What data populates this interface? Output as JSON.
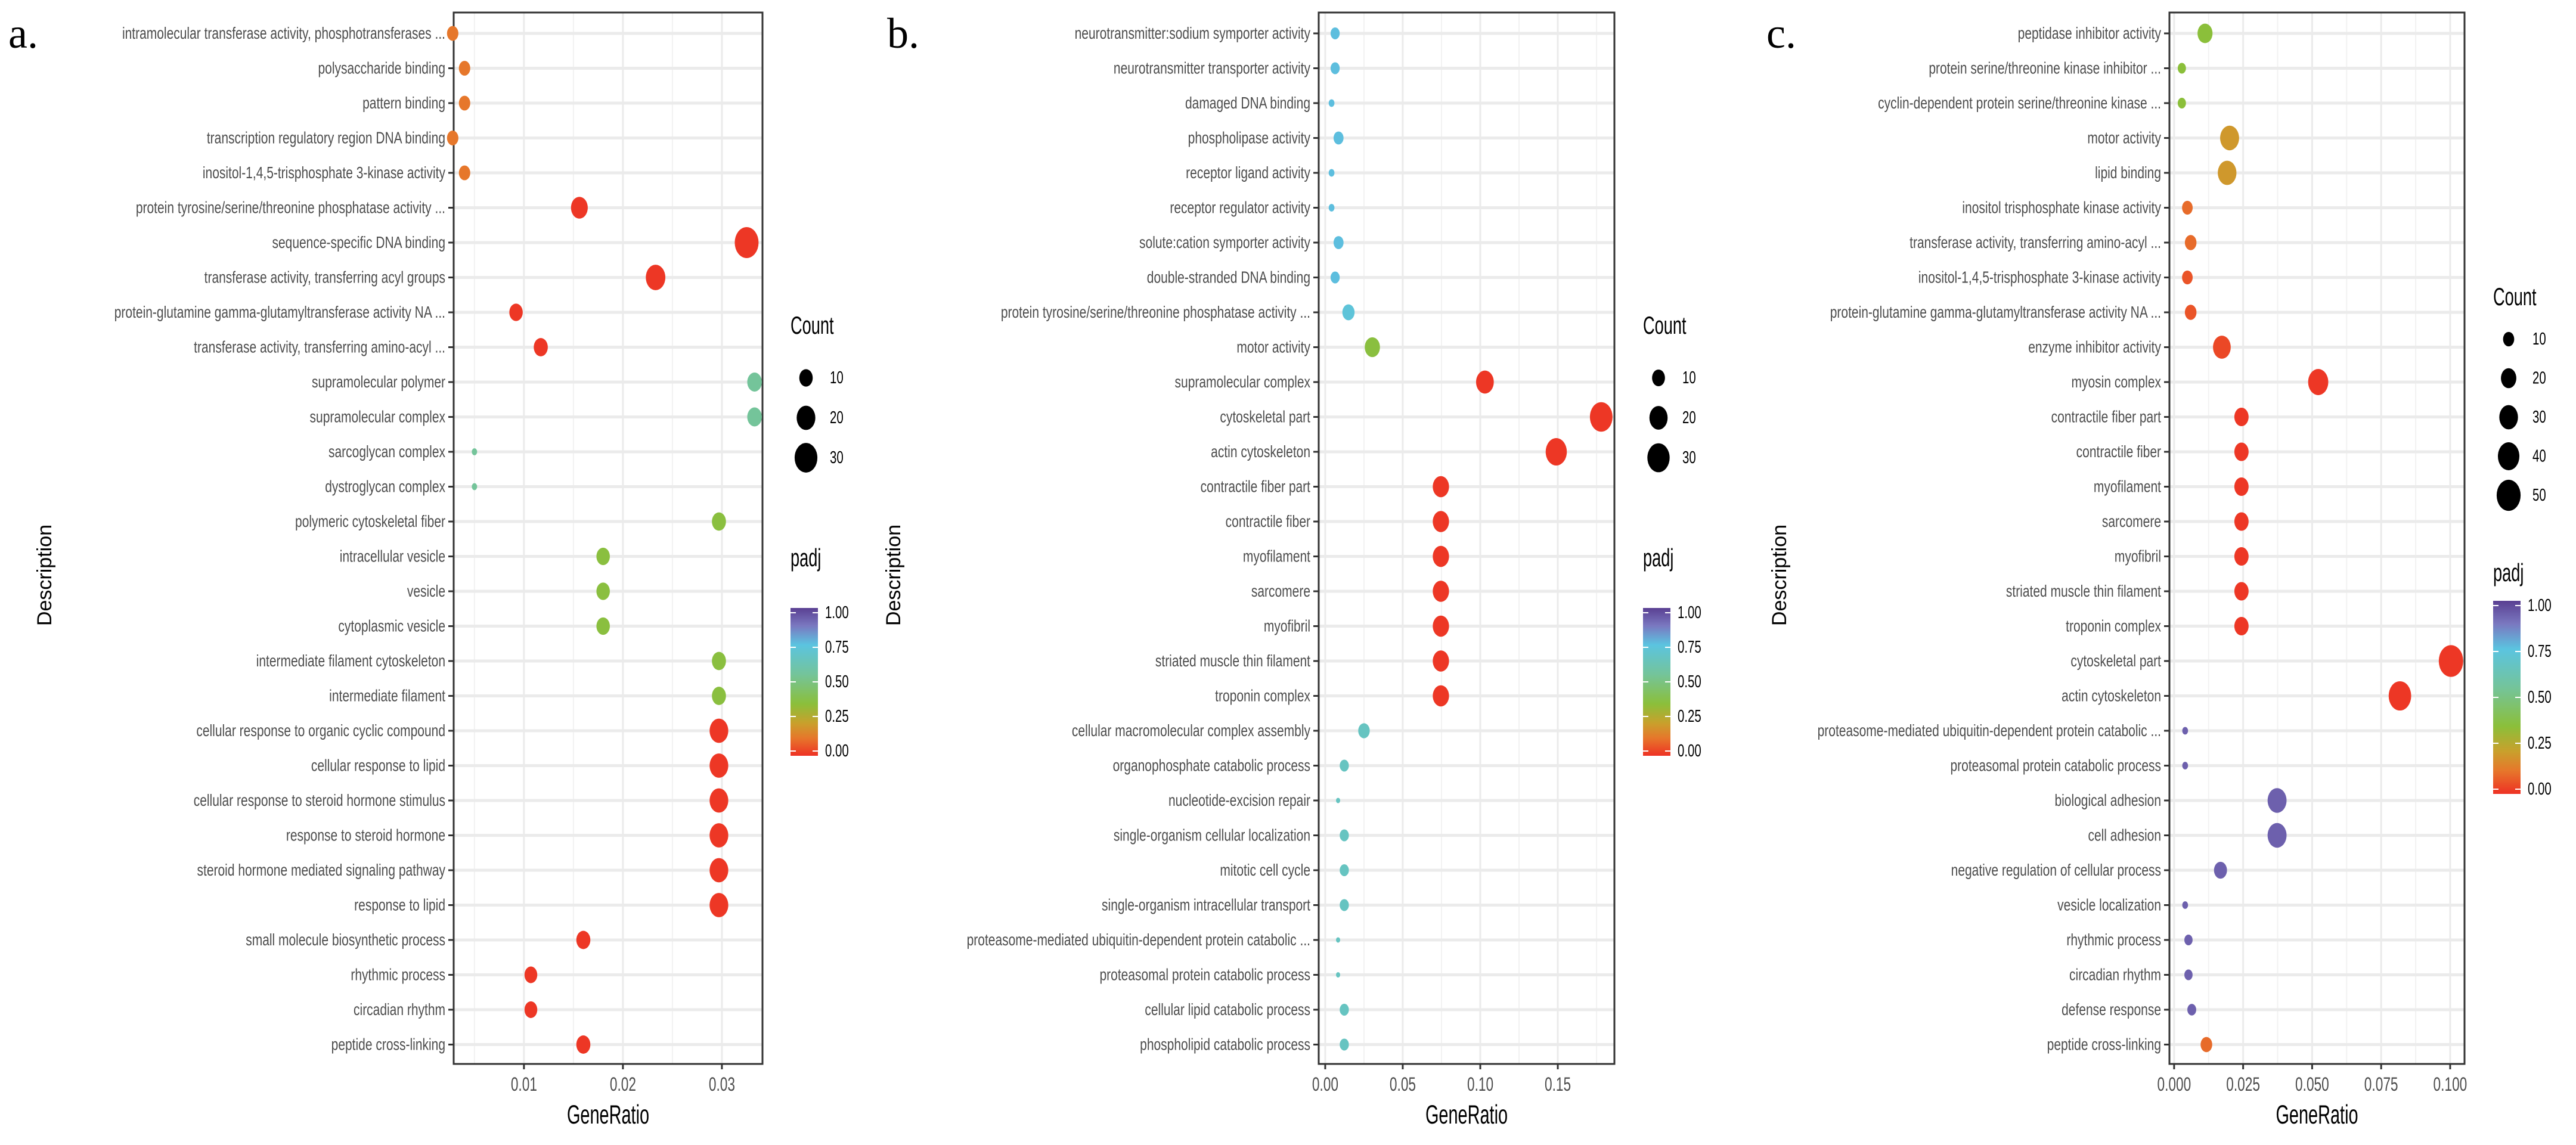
{
  "chart_data": [
    {
      "type": "scatter",
      "panel_letter": "a.",
      "xlabel": "GeneRatio",
      "ylabel": "Description",
      "xlim": [
        0.0029,
        0.0341
      ],
      "major_ticks": [
        0.01,
        0.02,
        0.03
      ],
      "tick_labels": [
        "0.01",
        "0.02",
        "0.03"
      ],
      "minor_ticks": [
        0.005,
        0.015,
        0.025
      ],
      "grid": true,
      "size_legend": {
        "title": "Count",
        "values": [
          10,
          20,
          30
        ],
        "labels": [
          "10",
          "20",
          "30"
        ]
      },
      "color_legend": {
        "title": "padj",
        "labels": [
          "1.00",
          "0.75",
          "0.50",
          "0.25",
          "0.00"
        ],
        "range": [
          0,
          1
        ]
      },
      "legend_position": "right",
      "terms": [
        {
          "label": "intramolecular transferase activity, phosphotransferases ...",
          "gene_ratio": 0.0028,
          "count": 7,
          "padj": 0.12
        },
        {
          "label": "polysaccharide binding",
          "gene_ratio": 0.004,
          "count": 7,
          "padj": 0.12
        },
        {
          "label": "pattern binding",
          "gene_ratio": 0.004,
          "count": 7,
          "padj": 0.12
        },
        {
          "label": "transcription regulatory region DNA binding",
          "gene_ratio": 0.0028,
          "count": 7,
          "padj": 0.12
        },
        {
          "label": "inositol-1,4,5-trisphosphate 3-kinase activity",
          "gene_ratio": 0.004,
          "count": 7,
          "padj": 0.12
        },
        {
          "label": "protein tyrosine/serine/threonine phosphatase activity ...",
          "gene_ratio": 0.0156,
          "count": 16,
          "padj": 0.01
        },
        {
          "label": "sequence-specific DNA binding",
          "gene_ratio": 0.0325,
          "count": 33,
          "padj": 0.01
        },
        {
          "label": "transferase activity, transferring acyl groups",
          "gene_ratio": 0.0233,
          "count": 22,
          "padj": 0.01
        },
        {
          "label": "protein-glutamine gamma-glutamyltransferase activity NA ...",
          "gene_ratio": 0.0092,
          "count": 10,
          "padj": 0.01
        },
        {
          "label": "transferase activity, transferring amino-acyl ...",
          "gene_ratio": 0.0117,
          "count": 11,
          "padj": 0.01
        },
        {
          "label": "supramolecular polymer",
          "gene_ratio": 0.0333,
          "count": 12,
          "padj": 0.55
        },
        {
          "label": "supramolecular complex",
          "gene_ratio": 0.0333,
          "count": 12,
          "padj": 0.55
        },
        {
          "label": "sarcoglycan complex",
          "gene_ratio": 0.005,
          "count": 1,
          "padj": 0.55
        },
        {
          "label": "dystroglycan complex",
          "gene_ratio": 0.005,
          "count": 1,
          "padj": 0.55
        },
        {
          "label": "polymeric cytoskeletal fiber",
          "gene_ratio": 0.0297,
          "count": 11,
          "padj": 0.36
        },
        {
          "label": "intracellular vesicle",
          "gene_ratio": 0.018,
          "count": 10,
          "padj": 0.36
        },
        {
          "label": "vesicle",
          "gene_ratio": 0.018,
          "count": 10,
          "padj": 0.36
        },
        {
          "label": "cytoplasmic vesicle",
          "gene_ratio": 0.018,
          "count": 10,
          "padj": 0.36
        },
        {
          "label": "intermediate filament cytoskeleton",
          "gene_ratio": 0.0297,
          "count": 11,
          "padj": 0.36
        },
        {
          "label": "intermediate filament",
          "gene_ratio": 0.0297,
          "count": 11,
          "padj": 0.36
        },
        {
          "label": "cellular response to organic cyclic compound",
          "gene_ratio": 0.0297,
          "count": 20,
          "padj": 0.01
        },
        {
          "label": "cellular response to lipid",
          "gene_ratio": 0.0297,
          "count": 20,
          "padj": 0.01
        },
        {
          "label": "cellular response to steroid hormone stimulus",
          "gene_ratio": 0.0297,
          "count": 20,
          "padj": 0.01
        },
        {
          "label": "response to steroid hormone",
          "gene_ratio": 0.0297,
          "count": 20,
          "padj": 0.01
        },
        {
          "label": "steroid hormone mediated signaling pathway",
          "gene_ratio": 0.0297,
          "count": 20,
          "padj": 0.01
        },
        {
          "label": "response to lipid",
          "gene_ratio": 0.0297,
          "count": 20,
          "padj": 0.01
        },
        {
          "label": "small molecule biosynthetic process",
          "gene_ratio": 0.016,
          "count": 11,
          "padj": 0.01
        },
        {
          "label": "rhythmic process",
          "gene_ratio": 0.0107,
          "count": 9,
          "padj": 0.01
        },
        {
          "label": "circadian rhythm",
          "gene_ratio": 0.0107,
          "count": 9,
          "padj": 0.01
        },
        {
          "label": "peptide cross-linking",
          "gene_ratio": 0.016,
          "count": 11,
          "padj": 0.01
        }
      ]
    },
    {
      "type": "scatter",
      "panel_letter": "b.",
      "xlabel": "GeneRatio",
      "ylabel": "Description",
      "xlim": [
        -0.0042,
        0.1865
      ],
      "major_ticks": [
        0,
        0.05,
        0.1,
        0.15
      ],
      "tick_labels": [
        "0.00",
        "0.05",
        "0.10",
        "0.15"
      ],
      "minor_ticks": [
        0.025,
        0.075,
        0.125,
        0.175
      ],
      "grid": true,
      "size_legend": {
        "title": "Count",
        "values": [
          10,
          20,
          30
        ],
        "labels": [
          "10",
          "20",
          "30"
        ]
      },
      "color_legend": {
        "title": "padj",
        "labels": [
          "1.00",
          "0.75",
          "0.50",
          "0.25",
          "0.00"
        ],
        "range": [
          0,
          1
        ]
      },
      "legend_position": "right",
      "terms": [
        {
          "label": "neurotransmitter:sodium symporter activity",
          "gene_ratio": 0.0064,
          "count": 5,
          "padj": 0.76
        },
        {
          "label": "neurotransmitter transporter activity",
          "gene_ratio": 0.0064,
          "count": 5,
          "padj": 0.76
        },
        {
          "label": "damaged DNA binding",
          "gene_ratio": 0.0041,
          "count": 2,
          "padj": 0.76
        },
        {
          "label": "phospholipase activity",
          "gene_ratio": 0.0086,
          "count": 6,
          "padj": 0.76
        },
        {
          "label": "receptor ligand activity",
          "gene_ratio": 0.0041,
          "count": 2,
          "padj": 0.76
        },
        {
          "label": "receptor regulator activity",
          "gene_ratio": 0.0041,
          "count": 2,
          "padj": 0.76
        },
        {
          "label": "solute:cation symporter activity",
          "gene_ratio": 0.0086,
          "count": 6,
          "padj": 0.76
        },
        {
          "label": "double-stranded DNA binding",
          "gene_ratio": 0.0064,
          "count": 5,
          "padj": 0.76
        },
        {
          "label": "protein tyrosine/serine/threonine phosphatase activity ...",
          "gene_ratio": 0.015,
          "count": 9,
          "padj": 0.73
        },
        {
          "label": "motor activity",
          "gene_ratio": 0.0304,
          "count": 14,
          "padj": 0.36
        },
        {
          "label": "supramolecular complex",
          "gene_ratio": 0.103,
          "count": 19,
          "padj": 0.01
        },
        {
          "label": "cytoskeletal part",
          "gene_ratio": 0.178,
          "count": 31,
          "padj": 0.01
        },
        {
          "label": "actin cytoskeleton",
          "gene_ratio": 0.149,
          "count": 27,
          "padj": 0.01
        },
        {
          "label": "contractile fiber part",
          "gene_ratio": 0.0746,
          "count": 16,
          "padj": 0.01
        },
        {
          "label": "contractile fiber",
          "gene_ratio": 0.0746,
          "count": 16,
          "padj": 0.01
        },
        {
          "label": "myofilament",
          "gene_ratio": 0.0746,
          "count": 16,
          "padj": 0.01
        },
        {
          "label": "sarcomere",
          "gene_ratio": 0.0746,
          "count": 16,
          "padj": 0.01
        },
        {
          "label": "myofibril",
          "gene_ratio": 0.0746,
          "count": 16,
          "padj": 0.01
        },
        {
          "label": "striated muscle thin filament",
          "gene_ratio": 0.0746,
          "count": 16,
          "padj": 0.01
        },
        {
          "label": "troponin complex",
          "gene_ratio": 0.0746,
          "count": 16,
          "padj": 0.01
        },
        {
          "label": "cellular macromolecular complex assembly",
          "gene_ratio": 0.025,
          "count": 8,
          "padj": 0.66
        },
        {
          "label": "organophosphate catabolic process",
          "gene_ratio": 0.0123,
          "count": 5,
          "padj": 0.66
        },
        {
          "label": "nucleotide-excision repair",
          "gene_ratio": 0.0083,
          "count": 1,
          "padj": 0.66
        },
        {
          "label": "single-organism cellular localization",
          "gene_ratio": 0.0123,
          "count": 5,
          "padj": 0.66
        },
        {
          "label": "mitotic cell cycle",
          "gene_ratio": 0.0123,
          "count": 5,
          "padj": 0.66
        },
        {
          "label": "single-organism intracellular transport",
          "gene_ratio": 0.0123,
          "count": 5,
          "padj": 0.66
        },
        {
          "label": "proteasome-mediated ubiquitin-dependent protein catabolic ...",
          "gene_ratio": 0.0083,
          "count": 1,
          "padj": 0.66
        },
        {
          "label": "proteasomal protein catabolic process",
          "gene_ratio": 0.0083,
          "count": 1,
          "padj": 0.66
        },
        {
          "label": "cellular lipid catabolic process",
          "gene_ratio": 0.0123,
          "count": 5,
          "padj": 0.66
        },
        {
          "label": "phospholipid catabolic process",
          "gene_ratio": 0.0123,
          "count": 5,
          "padj": 0.66
        }
      ]
    },
    {
      "type": "scatter",
      "panel_letter": "c.",
      "xlabel": "GeneRatio",
      "ylabel": "Description",
      "xlim": [
        -0.0017,
        0.1052
      ],
      "major_ticks": [
        0,
        0.025,
        0.05,
        0.075,
        0.1
      ],
      "tick_labels": [
        "0.000",
        "0.025",
        "0.050",
        "0.075",
        "0.100"
      ],
      "minor_ticks": [
        0.0125,
        0.0375,
        0.0625,
        0.0875
      ],
      "grid": true,
      "size_legend": {
        "title": "Count",
        "values": [
          10,
          20,
          30,
          40,
          50
        ],
        "labels": [
          "10",
          "20",
          "30",
          "40",
          "50"
        ]
      },
      "color_legend": {
        "title": "padj",
        "labels": [
          "1.00",
          "0.75",
          "0.50",
          "0.25",
          "0.00"
        ],
        "range": [
          0,
          1
        ]
      },
      "legend_position": "right",
      "terms": [
        {
          "label": "peptidase inhibitor activity",
          "gene_ratio": 0.0112,
          "count": 19,
          "padj": 0.35
        },
        {
          "label": "protein serine/threonine kinase inhibitor ...",
          "gene_ratio": 0.0028,
          "count": 5,
          "padj": 0.35
        },
        {
          "label": "cyclin-dependent protein serine/threonine kinase ...",
          "gene_ratio": 0.0028,
          "count": 5,
          "padj": 0.35
        },
        {
          "label": "motor activity",
          "gene_ratio": 0.0201,
          "count": 31,
          "padj": 0.2
        },
        {
          "label": "lipid binding",
          "gene_ratio": 0.0192,
          "count": 30,
          "padj": 0.2
        },
        {
          "label": "inositol trisphosphate kinase activity",
          "gene_ratio": 0.0048,
          "count": 9,
          "padj": 0.1
        },
        {
          "label": "transferase activity, transferring amino-acyl ...",
          "gene_ratio": 0.006,
          "count": 11,
          "padj": 0.1
        },
        {
          "label": "inositol-1,4,5-trisphosphate 3-kinase activity",
          "gene_ratio": 0.0048,
          "count": 9,
          "padj": 0.06
        },
        {
          "label": "protein-glutamine gamma-glutamyltransferase activity NA ...",
          "gene_ratio": 0.006,
          "count": 11,
          "padj": 0.06
        },
        {
          "label": "enzyme inhibitor activity",
          "gene_ratio": 0.0173,
          "count": 27,
          "padj": 0.04
        },
        {
          "label": "myosin complex",
          "gene_ratio": 0.0522,
          "count": 35,
          "padj": 0.01
        },
        {
          "label": "contractile fiber part",
          "gene_ratio": 0.0244,
          "count": 17,
          "padj": 0.01
        },
        {
          "label": "contractile fiber",
          "gene_ratio": 0.0244,
          "count": 17,
          "padj": 0.01
        },
        {
          "label": "myofilament",
          "gene_ratio": 0.0244,
          "count": 17,
          "padj": 0.01
        },
        {
          "label": "sarcomere",
          "gene_ratio": 0.0244,
          "count": 17,
          "padj": 0.01
        },
        {
          "label": "myofibril",
          "gene_ratio": 0.0244,
          "count": 17,
          "padj": 0.01
        },
        {
          "label": "striated muscle thin filament",
          "gene_ratio": 0.0244,
          "count": 17,
          "padj": 0.01
        },
        {
          "label": "troponin complex",
          "gene_ratio": 0.0244,
          "count": 17,
          "padj": 0.01
        },
        {
          "label": "cytoskeletal part",
          "gene_ratio": 0.1003,
          "count": 52,
          "padj": 0.01
        },
        {
          "label": "actin cytoskeleton",
          "gene_ratio": 0.0818,
          "count": 44,
          "padj": 0.01
        },
        {
          "label": "proteasome-mediated ubiquitin-dependent protein catabolic ...",
          "gene_ratio": 0.004,
          "count": 2,
          "padj": 0.93
        },
        {
          "label": "proteasomal protein catabolic process",
          "gene_ratio": 0.004,
          "count": 2,
          "padj": 0.93
        },
        {
          "label": "biological adhesion",
          "gene_ratio": 0.0373,
          "count": 31,
          "padj": 0.93
        },
        {
          "label": "cell adhesion",
          "gene_ratio": 0.0373,
          "count": 31,
          "padj": 0.93
        },
        {
          "label": "negative regulation of cellular process",
          "gene_ratio": 0.0168,
          "count": 14,
          "padj": 0.93
        },
        {
          "label": "vesicle localization",
          "gene_ratio": 0.004,
          "count": 2,
          "padj": 0.93
        },
        {
          "label": "rhythmic process",
          "gene_ratio": 0.0052,
          "count": 5,
          "padj": 0.93
        },
        {
          "label": "circadian rhythm",
          "gene_ratio": 0.0052,
          "count": 5,
          "padj": 0.93
        },
        {
          "label": "defense response",
          "gene_ratio": 0.0064,
          "count": 6,
          "padj": 0.93
        },
        {
          "label": "peptide cross-linking",
          "gene_ratio": 0.0117,
          "count": 11,
          "padj": 0.1
        }
      ]
    }
  ],
  "colors": {
    "padj_scale": [
      "#ee3124",
      "#e6772b",
      "#c9a02c",
      "#8bbf3a",
      "#74c49a",
      "#5bc4e0",
      "#7a78c0",
      "#5a3f92"
    ],
    "grid": "#ebebeb",
    "panel_border": "#333333",
    "label_text": "#4d4d4d"
  }
}
